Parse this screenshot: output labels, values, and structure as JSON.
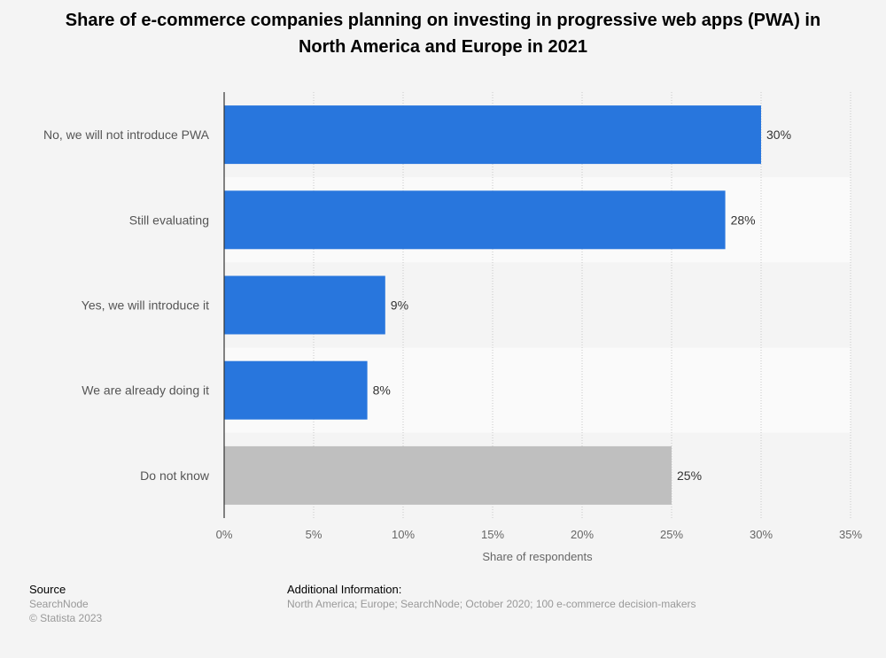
{
  "title": "Share of e-commerce companies planning on investing in progressive web apps (PWA) in North America and Europe in 2021",
  "chart_data": {
    "type": "bar",
    "orientation": "horizontal",
    "categories": [
      "No, we will not introduce PWA",
      "Still evaluating",
      "Yes, we will introduce it",
      "We are already doing it",
      "Do not know"
    ],
    "values": [
      30,
      28,
      9,
      8,
      25
    ],
    "value_labels": [
      "30%",
      "28%",
      "9%",
      "8%",
      "25%"
    ],
    "bar_colors": [
      "#2876dd",
      "#2876dd",
      "#2876dd",
      "#2876dd",
      "#bfbfbf"
    ],
    "xlim": [
      0,
      35
    ],
    "xticks": [
      0,
      5,
      10,
      15,
      20,
      25,
      30,
      35
    ],
    "xtick_labels": [
      "0%",
      "5%",
      "10%",
      "15%",
      "20%",
      "25%",
      "30%",
      "35%"
    ],
    "xlabel": "Share of respondents",
    "grid": "vertical dotted",
    "band_colors": [
      "#f4f4f4",
      "#fafafa"
    ]
  },
  "footer": {
    "source_heading": "Source",
    "source_name": "SearchNode",
    "copyright": "© Statista 2023",
    "additional_heading": "Additional Information:",
    "additional_text": "North America; Europe; SearchNode; October 2020; 100 e-commerce decision-makers"
  }
}
